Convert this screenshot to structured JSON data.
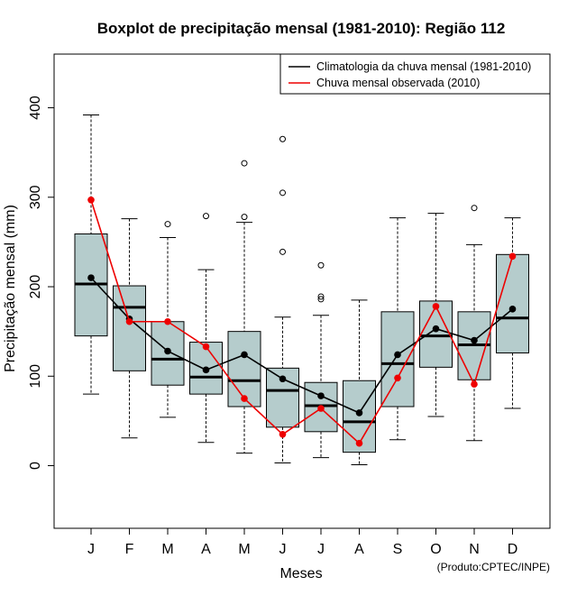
{
  "chart_data": {
    "type": "boxplot",
    "title": "Boxplot de precipitação mensal (1981-2010): Região 112",
    "xlabel": "Meses",
    "ylabel": "Precipitação mensal (mm)",
    "credit": "(Produto:CPTEC/INPE)",
    "ylim": [
      -70,
      460
    ],
    "yticks": [
      0,
      100,
      200,
      300,
      400
    ],
    "categories": [
      "J",
      "F",
      "M",
      "A",
      "M",
      "J",
      "J",
      "A",
      "S",
      "O",
      "N",
      "D"
    ],
    "box_color": "#b5cccc",
    "boxes": [
      {
        "min": 80,
        "q1": 145,
        "median": 203,
        "q3": 259,
        "max": 392,
        "outliers": []
      },
      {
        "min": 31,
        "q1": 106,
        "median": 177,
        "q3": 201,
        "max": 276,
        "outliers": []
      },
      {
        "min": 54,
        "q1": 90,
        "median": 119,
        "q3": 161,
        "max": 255,
        "outliers": [
          270
        ]
      },
      {
        "min": 26,
        "q1": 80,
        "median": 99,
        "q3": 138,
        "max": 219,
        "outliers": [
          279
        ]
      },
      {
        "min": 14,
        "q1": 66,
        "median": 95,
        "q3": 150,
        "max": 272,
        "outliers": [
          278,
          338
        ]
      },
      {
        "min": 3,
        "q1": 43,
        "median": 84,
        "q3": 109,
        "max": 166,
        "outliers": [
          239,
          305,
          365
        ]
      },
      {
        "min": 9,
        "q1": 38,
        "median": 67,
        "q3": 93,
        "max": 168,
        "outliers": [
          186,
          189,
          224
        ]
      },
      {
        "min": 1,
        "q1": 15,
        "median": 49,
        "q3": 95,
        "max": 185,
        "outliers": []
      },
      {
        "min": 29,
        "q1": 66,
        "median": 114,
        "q3": 172,
        "max": 277,
        "outliers": []
      },
      {
        "min": 55,
        "q1": 110,
        "median": 145,
        "q3": 184,
        "max": 282,
        "outliers": []
      },
      {
        "min": 28,
        "q1": 96,
        "median": 135,
        "q3": 172,
        "max": 247,
        "outliers": [
          288
        ]
      },
      {
        "min": 64,
        "q1": 126,
        "median": 165,
        "q3": 236,
        "max": 277,
        "outliers": []
      }
    ],
    "series": [
      {
        "name": "Climatologia da chuva mensal (1981-2010)",
        "color": "#000000",
        "values": [
          210,
          164,
          128,
          107,
          124,
          97,
          78,
          59,
          124,
          153,
          140,
          175
        ]
      },
      {
        "name": "Chuva mensal observada (2010)",
        "color": "#ee0000",
        "values": [
          297,
          161,
          161,
          133,
          75,
          35,
          64,
          25,
          98,
          178,
          91,
          234
        ]
      }
    ]
  }
}
